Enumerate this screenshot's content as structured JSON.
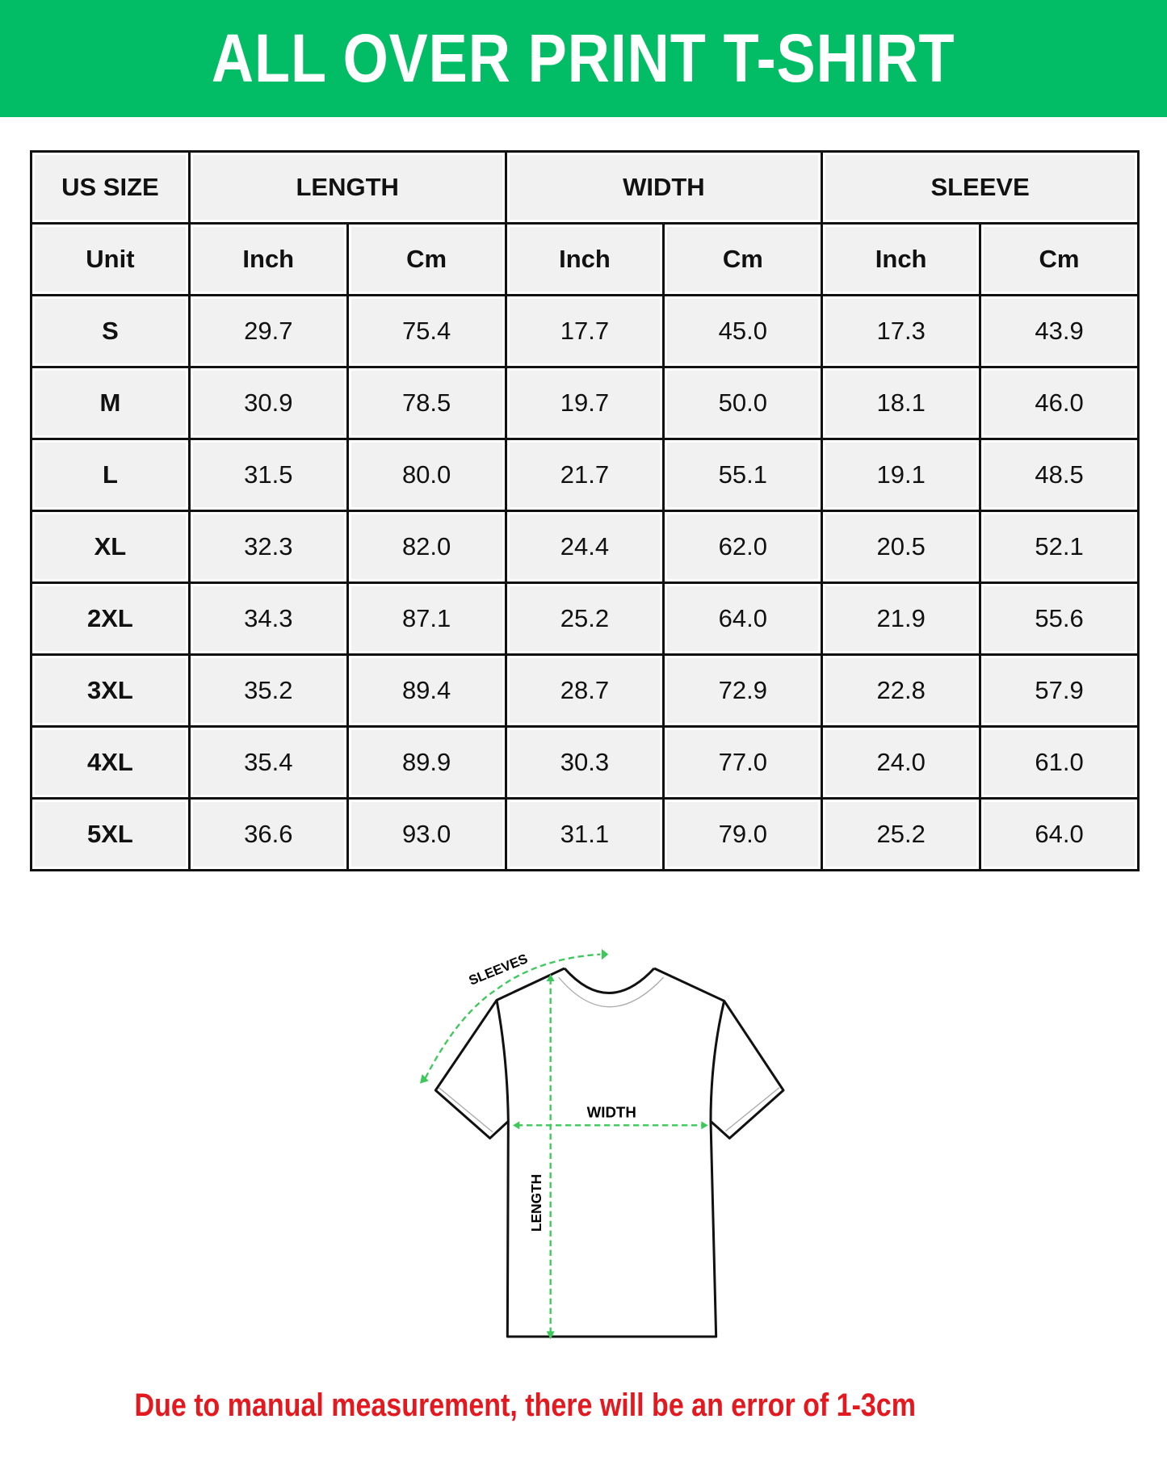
{
  "title": "ALL OVER PRINT T-SHIRT",
  "colors": {
    "banner": "#02bd66",
    "note": "#e3191f",
    "measure_lines": "#3cc95a"
  },
  "table": {
    "group_headers": [
      "US SIZE",
      "LENGTH",
      "WIDTH",
      "SLEEVE"
    ],
    "unit_label": "Unit",
    "units": [
      "Inch",
      "Cm",
      "Inch",
      "Cm",
      "Inch",
      "Cm"
    ],
    "rows": [
      {
        "size": "S",
        "values": [
          "29.7",
          "75.4",
          "17.7",
          "45.0",
          "17.3",
          "43.9"
        ]
      },
      {
        "size": "M",
        "values": [
          "30.9",
          "78.5",
          "19.7",
          "50.0",
          "18.1",
          "46.0"
        ]
      },
      {
        "size": "L",
        "values": [
          "31.5",
          "80.0",
          "21.7",
          "55.1",
          "19.1",
          "48.5"
        ]
      },
      {
        "size": "XL",
        "values": [
          "32.3",
          "82.0",
          "24.4",
          "62.0",
          "20.5",
          "52.1"
        ]
      },
      {
        "size": "2XL",
        "values": [
          "34.3",
          "87.1",
          "25.2",
          "64.0",
          "21.9",
          "55.6"
        ]
      },
      {
        "size": "3XL",
        "values": [
          "35.2",
          "89.4",
          "28.7",
          "72.9",
          "22.8",
          "57.9"
        ]
      },
      {
        "size": "4XL",
        "values": [
          "35.4",
          "89.9",
          "30.3",
          "77.0",
          "24.0",
          "61.0"
        ]
      },
      {
        "size": "5XL",
        "values": [
          "36.6",
          "93.0",
          "31.1",
          "79.0",
          "25.2",
          "64.0"
        ]
      }
    ]
  },
  "diagram": {
    "sleeves_label": "SLEEVES",
    "width_label": "WIDTH",
    "length_label": "LENGTH"
  },
  "note": "Due to manual measurement, there will be an error of 1-3cm"
}
